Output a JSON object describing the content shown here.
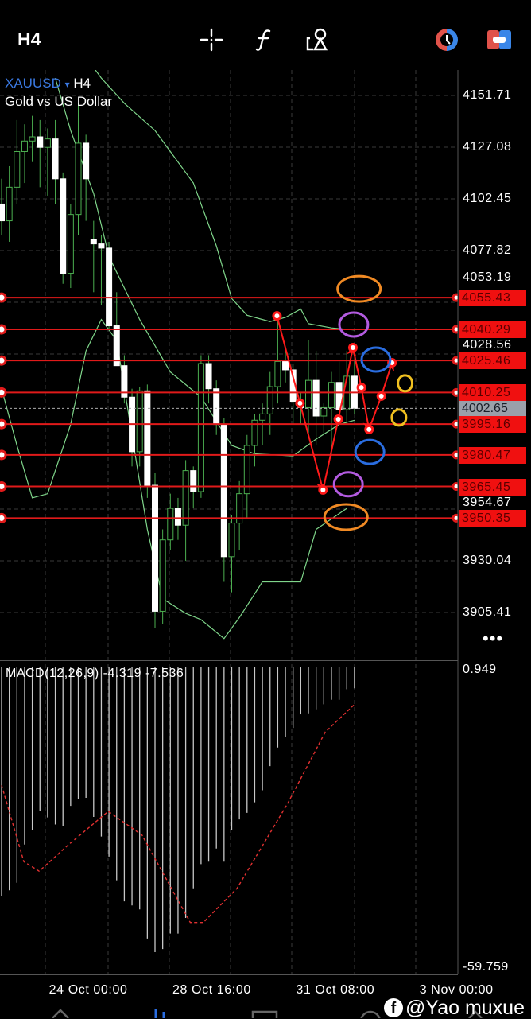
{
  "header": {
    "timeframe": "H4",
    "icons": [
      "crosshair-icon",
      "function-icon",
      "objects-icon",
      "clock-icon",
      "trade-icon"
    ]
  },
  "symbol": {
    "name": "XAUUSD",
    "dropdown": "▾",
    "timeframe": "H4",
    "description": "Gold vs US Dollar"
  },
  "more_label": "•••",
  "watermark": {
    "fb": "f",
    "text": "@Yao muxue"
  },
  "colors": {
    "bullish": "#4caf50",
    "bearish": "#ffffff",
    "bands": "#7fd58a",
    "level_line": "#e01a1a",
    "histogram": "#c8c8c8",
    "signal": "#e03030",
    "current_price_bg": "#9aa0aa",
    "symbol": "#3a78e0"
  },
  "chart_data": [
    {
      "type": "candlestick",
      "title": "XAUUSD H4",
      "price_axis_ticks": [
        "4151.71",
        "4127.08",
        "4102.45",
        "4077.82",
        "4053.19",
        "4028.56",
        "3954.67",
        "3930.04",
        "3905.41"
      ],
      "ylim": [
        3880,
        4165
      ],
      "time_axis_ticks": [
        {
          "label": "24 Oct 00:00",
          "index": 12.4
        },
        {
          "label": "28 Oct 16:00",
          "index": 28.5
        },
        {
          "label": "31 Oct 08:00",
          "index": 44.6
        },
        {
          "label": "3 Nov 00:00",
          "index": 60.7
        }
      ],
      "grid": true,
      "current_price": "4002.65",
      "candles_ohlc": [
        [
          4100,
          4112,
          4085,
          4092
        ],
        [
          4092,
          4118,
          4082,
          4108
        ],
        [
          4108,
          4140,
          4100,
          4125
        ],
        [
          4125,
          4138,
          4110,
          4130
        ],
        [
          4130,
          4142,
          4120,
          4132
        ],
        [
          4132,
          4140,
          4108,
          4127
        ],
        [
          4127,
          4136,
          4104,
          4131
        ],
        [
          4131,
          4140,
          4100,
          4112
        ],
        [
          4112,
          4115,
          4062,
          4067
        ],
        [
          4067,
          4100,
          4060,
          4095
        ],
        [
          4095,
          4148,
          4085,
          4129
        ],
        [
          4129,
          4133,
          4092,
          4112
        ],
        [
          4083,
          4092,
          4058,
          4081
        ],
        [
          4081,
          4085,
          4052,
          4079
        ],
        [
          4079,
          4082,
          4040,
          4042
        ],
        [
          4042,
          4058,
          4030,
          4023
        ],
        [
          4023,
          4028,
          4005,
          4008
        ],
        [
          4008,
          4012,
          3975,
          3982
        ],
        [
          3982,
          4013,
          3975,
          4011
        ],
        [
          4011,
          4014,
          3960,
          3966
        ],
        [
          3966,
          3972,
          3898,
          3906
        ],
        [
          3906,
          3945,
          3900,
          3940
        ],
        [
          3940,
          3962,
          3935,
          3955
        ],
        [
          3955,
          3960,
          3940,
          3947
        ],
        [
          3947,
          3978,
          3930,
          3973
        ],
        [
          3973,
          3975,
          3955,
          3963
        ],
        [
          3963,
          4028,
          3960,
          4024
        ],
        [
          4024,
          4028,
          4005,
          4012
        ],
        [
          4012,
          4016,
          3990,
          3995
        ],
        [
          3995,
          3998,
          3920,
          3932
        ],
        [
          3932,
          3952,
          3915,
          3948
        ],
        [
          3948,
          3968,
          3935,
          3962
        ],
        [
          3962,
          3990,
          3950,
          3985
        ],
        [
          3985,
          4000,
          3975,
          3997
        ],
        [
          3997,
          4005,
          3985,
          4000
        ],
        [
          4000,
          4020,
          3990,
          4013
        ],
        [
          4013,
          4045,
          4005,
          4025
        ],
        [
          4025,
          4032,
          4015,
          4021
        ],
        [
          4021,
          4024,
          3995,
          4006
        ],
        [
          4006,
          4010,
          3995,
          4003
        ],
        [
          4003,
          4035,
          3990,
          4016
        ],
        [
          4016,
          4030,
          3985,
          3999
        ],
        [
          3999,
          4005,
          3990,
          4003
        ],
        [
          4003,
          4020,
          3980,
          4015
        ],
        [
          4015,
          4025,
          4000,
          4002
        ],
        [
          4002,
          4030,
          3995,
          4018
        ],
        [
          4018,
          4026,
          4000,
          4002.65
        ]
      ],
      "bollinger_bands": {
        "upper": [
          [
            10,
            4175
          ],
          [
            13,
            4160
          ],
          [
            16,
            4148
          ],
          [
            20,
            4135
          ],
          [
            25,
            4110
          ],
          [
            28,
            4080
          ],
          [
            30,
            4055
          ],
          [
            32,
            4047
          ],
          [
            35,
            4044
          ],
          [
            37,
            4046
          ],
          [
            39,
            4050
          ],
          [
            40,
            4043
          ],
          [
            43,
            4041
          ],
          [
            46,
            4040
          ]
        ],
        "middle": [
          [
            7,
            4160
          ],
          [
            9,
            4135
          ],
          [
            12,
            4105
          ],
          [
            14,
            4075
          ],
          [
            18,
            4045
          ],
          [
            22,
            4020
          ],
          [
            26,
            4008
          ],
          [
            30,
            3985
          ],
          [
            33,
            3981
          ],
          [
            38,
            3980
          ],
          [
            41,
            3988
          ],
          [
            44,
            3995
          ],
          [
            46,
            3997
          ]
        ],
        "lower": [
          [
            0,
            4012
          ],
          [
            2,
            3985
          ],
          [
            4,
            3960
          ],
          [
            6,
            3962
          ],
          [
            9,
            3995
          ],
          [
            11,
            4030
          ],
          [
            13,
            4045
          ],
          [
            15,
            4035
          ],
          [
            17,
            3990
          ],
          [
            19,
            3945
          ],
          [
            21,
            3912
          ],
          [
            24,
            3905
          ],
          [
            26,
            3902
          ],
          [
            29,
            3893
          ],
          [
            31,
            3903
          ],
          [
            34,
            3920
          ],
          [
            39,
            3920
          ],
          [
            41,
            3945
          ],
          [
            45,
            3955
          ]
        ]
      },
      "horizontal_levels": [
        "4055.43",
        "4040.29",
        "4025.46",
        "4010.25",
        "3995.16",
        "3980.47",
        "3965.45",
        "3950.35"
      ],
      "annotations": {
        "path_points": [
          [
            35.9,
            4046.7
          ],
          [
            38.9,
            4005.1
          ],
          [
            41.9,
            3963.8
          ],
          [
            43.9,
            3997.5
          ],
          [
            45.8,
            4031.6
          ],
          [
            46.9,
            4012.6
          ],
          [
            47.9,
            3992.6
          ],
          [
            49.5,
            4008.5
          ],
          [
            50.9,
            4024.4
          ]
        ],
        "arrow_segments": [
          [
            0,
            2
          ],
          [
            2,
            4
          ],
          [
            4,
            6
          ],
          [
            6,
            8
          ]
        ],
        "circles": [
          {
            "color": "#f08a24",
            "at": [
              46.6,
              4059.6
            ],
            "size": "large"
          },
          {
            "color": "#f08a24",
            "at": [
              44.9,
              3950.9
            ],
            "size": "large"
          },
          {
            "color": "#b35be0",
            "at": [
              45.9,
              4042.6
            ],
            "size": "medium"
          },
          {
            "color": "#b35be0",
            "at": [
              45.2,
              3966.5
            ],
            "size": "medium"
          },
          {
            "color": "#2a6de0",
            "at": [
              48.8,
              4025.9
            ],
            "size": "medium"
          },
          {
            "color": "#2a6de0",
            "at": [
              48.0,
              3981.9
            ],
            "size": "medium"
          },
          {
            "color": "#f0c020",
            "at": [
              52.6,
              4014.6
            ],
            "size": "small"
          },
          {
            "color": "#f0c020",
            "at": [
              51.8,
              3998.3
            ],
            "size": "small"
          }
        ]
      }
    },
    {
      "type": "bar",
      "title": "MACD(12,26,9) -4.319 -7.536",
      "label": "MACD(12,26,9)",
      "macd_value": "-4.319",
      "signal_value": "-7.536",
      "axis_ticks": [
        "0.949",
        "-59.759"
      ],
      "ylim": [
        -59.759,
        0.949
      ],
      "histogram": [
        -45.7,
        -44.5,
        -43.0,
        -35.4,
        -32.5,
        -28.8,
        -30.0,
        -31.4,
        -31.7,
        -27.7,
        -26.4,
        -26.1,
        -29.9,
        -33.8,
        -37.8,
        -42.5,
        -46.7,
        -47.5,
        -48.3,
        -54.1,
        -56.8,
        -56.2,
        -53.1,
        -53.1,
        -50.0,
        -44.1,
        -39.3,
        -38.8,
        -36.2,
        -38.8,
        -32.5,
        -30.4,
        -29.1,
        -27.0,
        -24.6,
        -19.8,
        -16.1,
        -14.0,
        -12.2,
        -9.5,
        -9.3,
        -8.5,
        -7.5,
        -6.6,
        -6.6,
        -4.5,
        -4.319
      ],
      "signal_line": [
        [
          0,
          -23.6
        ],
        [
          2.9,
          -38.8
        ],
        [
          4.9,
          -40.7
        ],
        [
          8.6,
          -35.6
        ],
        [
          13.9,
          -28.8
        ],
        [
          18.3,
          -33.5
        ],
        [
          24.6,
          -50.9
        ],
        [
          26.3,
          -50.9
        ],
        [
          30.7,
          -44.1
        ],
        [
          37.3,
          -27.2
        ],
        [
          42.2,
          -13.0
        ],
        [
          46,
          -7.536
        ]
      ]
    }
  ]
}
